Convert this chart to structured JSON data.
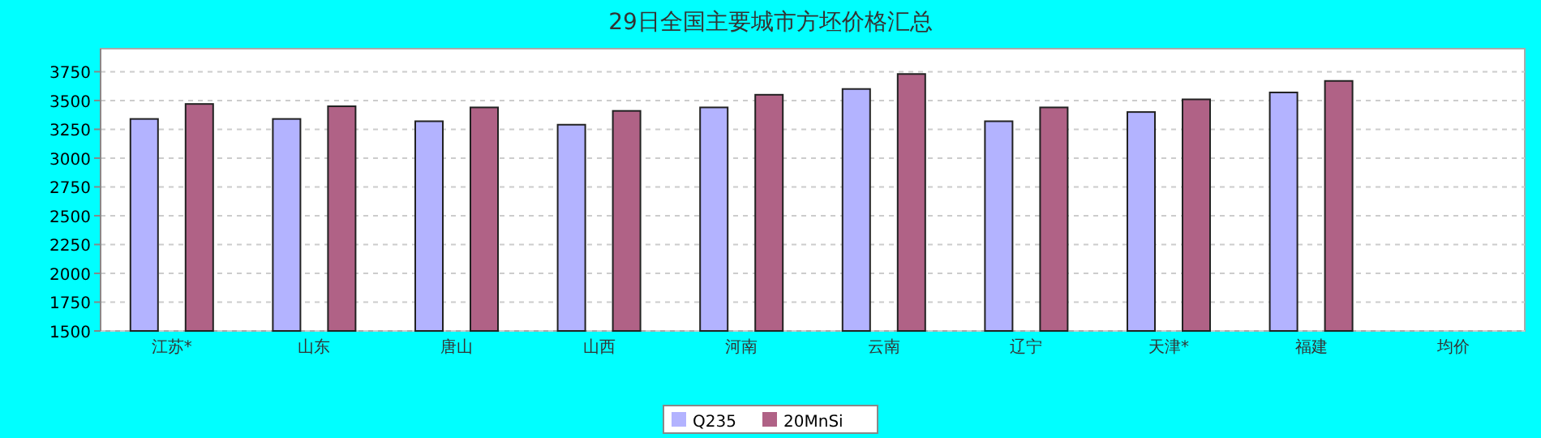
{
  "chart_data": {
    "type": "bar",
    "title": "29日全国主要城市方坯价格汇总",
    "categories": [
      "江苏*",
      "山东",
      "唐山",
      "山西",
      "河南",
      "云南",
      "辽宁",
      "天津*",
      "福建",
      "均价"
    ],
    "series": [
      {
        "name": "Q235",
        "color": "#b3b3ff",
        "values": [
          3340,
          3340,
          3320,
          3290,
          3440,
          3600,
          3320,
          3400,
          3570,
          null
        ]
      },
      {
        "name": "20MnSi",
        "color": "#b06286",
        "values": [
          3470,
          3450,
          3440,
          3410,
          3550,
          3730,
          3440,
          3510,
          3670,
          null
        ]
      }
    ],
    "ylim": [
      1500,
      3950
    ],
    "yticks": [
      1500,
      1750,
      2000,
      2250,
      2500,
      2750,
      3000,
      3250,
      3500,
      3750
    ],
    "grid": "y",
    "legend": "bottom"
  }
}
